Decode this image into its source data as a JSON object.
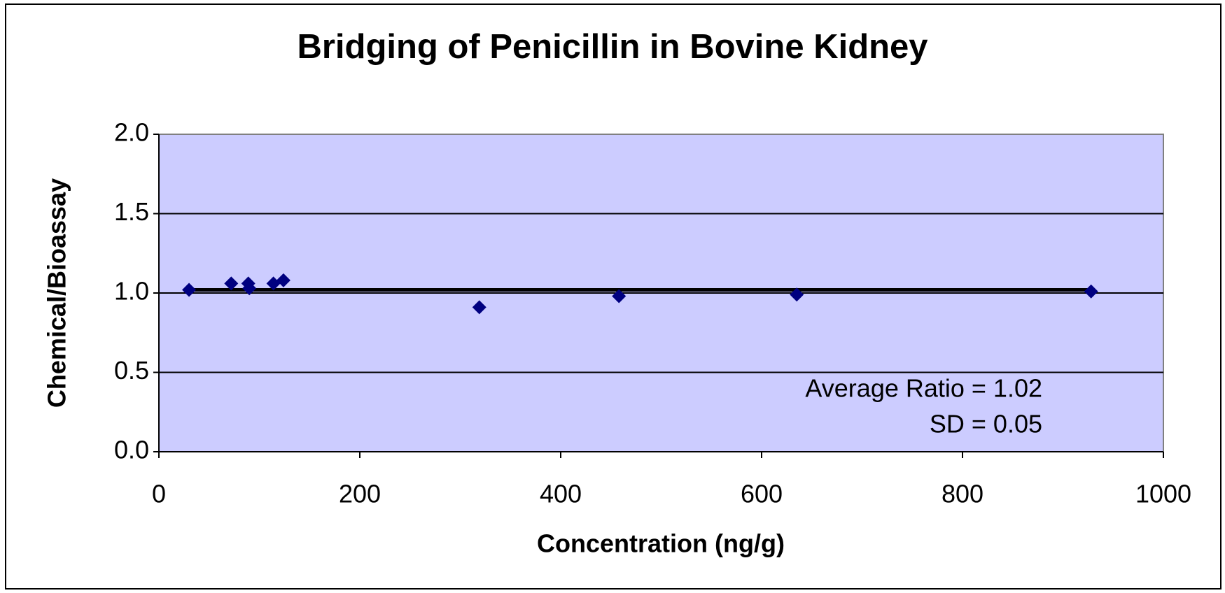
{
  "chart_data": {
    "type": "scatter",
    "title": "Bridging of Penicillin in Bovine Kidney",
    "x_label": "Concentration (ng/g)",
    "y_label": "Chemical/Bioassay",
    "annotations": [
      "Average Ratio = 1.02",
      "SD = 0.05"
    ],
    "average_line": 1.02,
    "series": [
      {
        "name": "Ratio",
        "color": "#000080",
        "x": [
          30,
          72,
          89,
          90,
          114,
          124,
          319,
          458,
          635,
          928
        ],
        "values": [
          1.02,
          1.06,
          1.06,
          1.03,
          1.06,
          1.08,
          0.91,
          0.98,
          0.99,
          1.01
        ]
      }
    ],
    "xlim": [
      0,
      1000
    ],
    "xticks": [
      0,
      200,
      400,
      600,
      800,
      1000
    ],
    "ylim": [
      0,
      2
    ],
    "yticks": [
      {
        "value": 0,
        "label": "0.0"
      },
      0.5,
      {
        "value": 1,
        "label": "1.0"
      },
      1.5,
      {
        "value": 2,
        "label": "2.0"
      }
    ],
    "grid": true,
    "background": "#ccccff"
  }
}
